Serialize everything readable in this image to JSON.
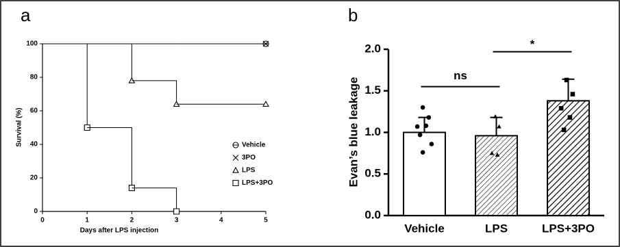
{
  "chart_data": [
    {
      "type": "line",
      "label": "a",
      "step": true,
      "x": [
        0,
        1,
        2,
        3,
        5
      ],
      "series": [
        {
          "name": "Vehicle",
          "color": "#000000",
          "marker": "circle-minus",
          "values": [
            100,
            100,
            100,
            100,
            100
          ]
        },
        {
          "name": "3PO",
          "color": "#000000",
          "marker": "x",
          "values": [
            100,
            100,
            100,
            100,
            100
          ]
        },
        {
          "name": "LPS",
          "color": "#000000",
          "marker": "triangle",
          "values": [
            100,
            100,
            78,
            64,
            64
          ]
        },
        {
          "name": "LPS+3PO",
          "color": "#000000",
          "marker": "square",
          "values": [
            100,
            50,
            14,
            0,
            null
          ]
        }
      ],
      "xlim": [
        0,
        5
      ],
      "xticks": [
        0,
        1,
        2,
        3,
        4,
        5
      ],
      "ylim": [
        0,
        100
      ],
      "yticks": [
        0,
        20,
        40,
        60,
        80,
        100
      ],
      "xlabel": "Days after LPS injection",
      "ylabel": "Survival (%)",
      "legend": "lower right"
    },
    {
      "type": "bar",
      "label": "b",
      "color": "#000000",
      "categories": [
        "Vehicle",
        "LPS",
        "LPS+3PO"
      ],
      "values": [
        1.0,
        0.96,
        1.38
      ],
      "errors": [
        0.18,
        0.22,
        0.26
      ],
      "points": [
        [
          1.3,
          1.18,
          1.07,
          1.08,
          0.97,
          0.86,
          0.76
        ],
        [
          1.19,
          1.07,
          0.75,
          0.73
        ],
        [
          1.63,
          1.46,
          1.29,
          1.18,
          1.03
        ]
      ],
      "markers": [
        "circle",
        "triangle",
        "square"
      ],
      "ylim": [
        0,
        2
      ],
      "yticks": [
        {
          "value": 0,
          "label": "0.0"
        },
        {
          "value": 0.5,
          "label": "0.5"
        },
        {
          "value": 1,
          "label": "1.0"
        },
        {
          "value": 1.5,
          "label": "1.5"
        },
        {
          "value": 2,
          "label": "2.0"
        }
      ],
      "ylabel": "Evan’s blue  leakage",
      "annotations": [
        {
          "text": "ns",
          "between": [
            "Vehicle",
            "LPS"
          ]
        },
        {
          "text": "*",
          "between": [
            "LPS",
            "LPS+3PO"
          ]
        }
      ]
    }
  ]
}
